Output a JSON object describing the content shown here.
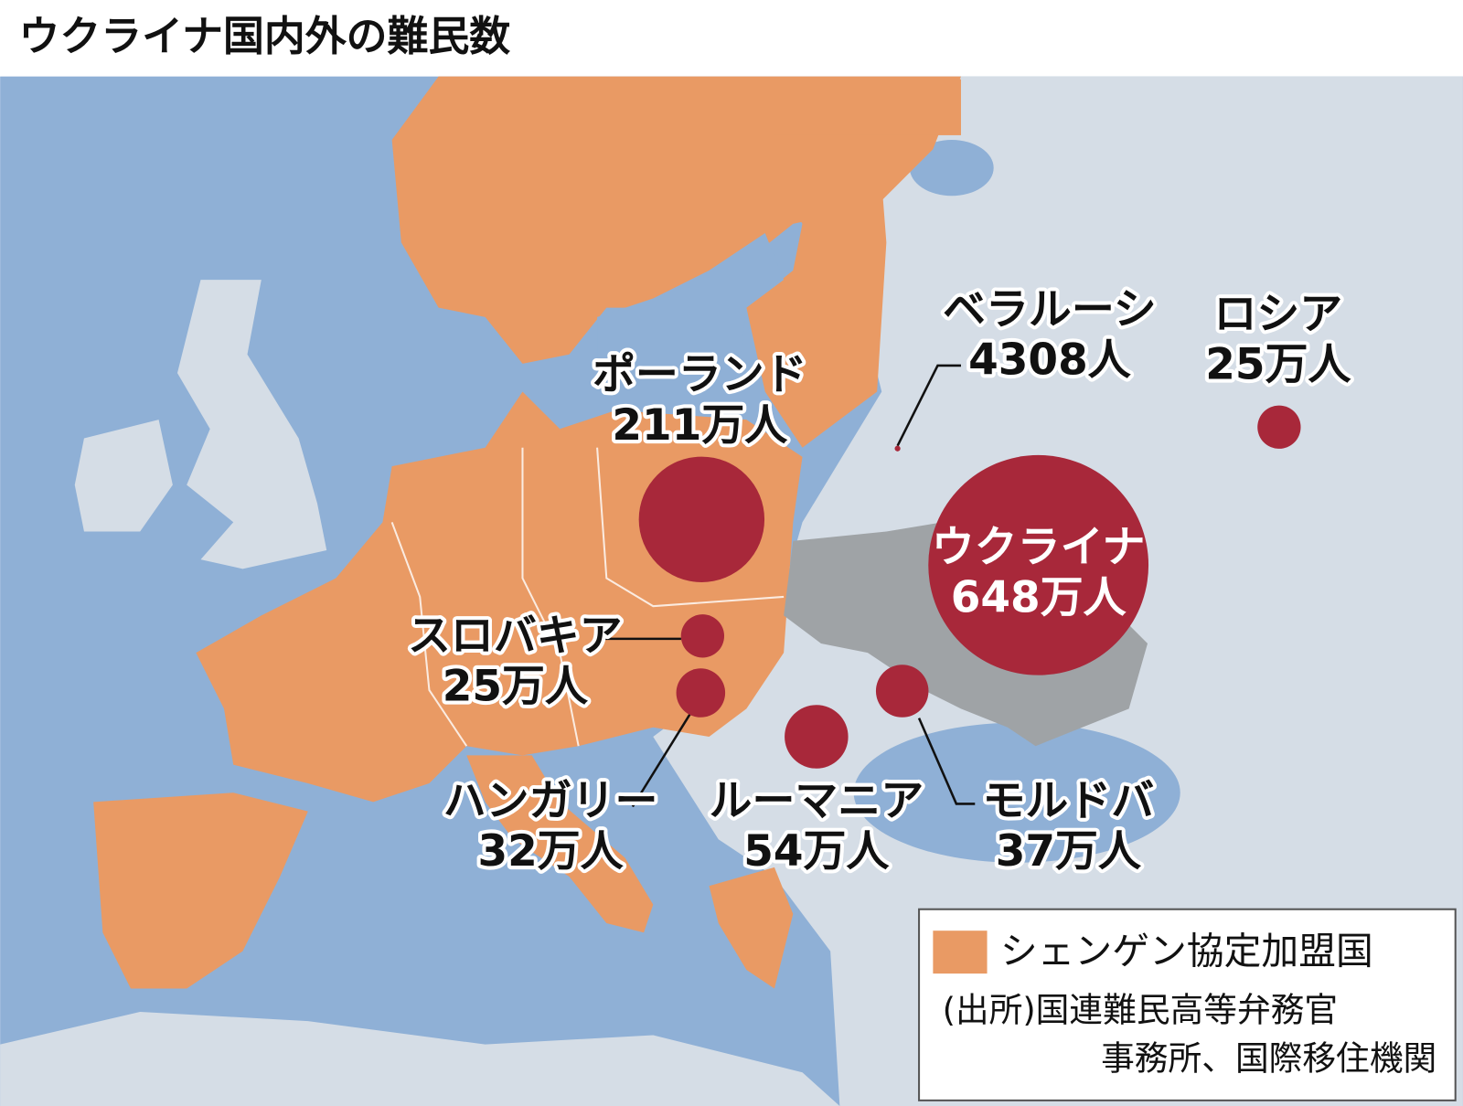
{
  "title": "ウクライナ国内外の難民数",
  "bubble_color": "#a8283a",
  "markers": [
    {
      "name": "ウクライナ",
      "value": 6480000,
      "value_label": "648万人"
    },
    {
      "name": "ポーランド",
      "value": 2110000,
      "value_label": "211万人"
    },
    {
      "name": "ルーマニア",
      "value": 540000,
      "value_label": "54万人"
    },
    {
      "name": "モルドバ",
      "value": 370000,
      "value_label": "37万人"
    },
    {
      "name": "ハンガリー",
      "value": 320000,
      "value_label": "32万人"
    },
    {
      "name": "スロバキア",
      "value": 250000,
      "value_label": "25万人"
    },
    {
      "name": "ロシア",
      "value": 250000,
      "value_label": "25万人"
    },
    {
      "name": "ベラルーシ",
      "value": 4308,
      "value_label": "4308人"
    }
  ],
  "legend": {
    "label": "シェンゲン協定加盟国",
    "color": "#e99a64"
  },
  "source": [
    "(出所)国連難民高等弁務官",
    "事務所、国際移住機関"
  ]
}
